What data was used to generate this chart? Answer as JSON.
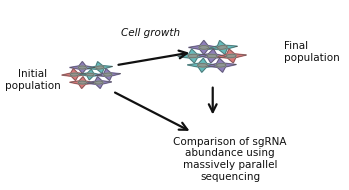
{
  "bg_color": "#ffffff",
  "cell_colors": {
    "teal": "#5bb8b8",
    "purple": "#8878b8",
    "pink": "#d97070",
    "nucleus_fill": "#909890",
    "nucleus_edge": "#606860",
    "cell_edge": "#555555"
  },
  "arrow_color": "#111111",
  "text_color": "#111111",
  "labels": {
    "initial": "Initial\npopulation",
    "cell_growth": "Cell growth",
    "final": "Final\npopulation",
    "comparison": "Comparison of sgRNA\nabundance using\nmassively parallel\nsequencing"
  },
  "figsize": [
    3.49,
    1.9
  ],
  "dpi": 100
}
